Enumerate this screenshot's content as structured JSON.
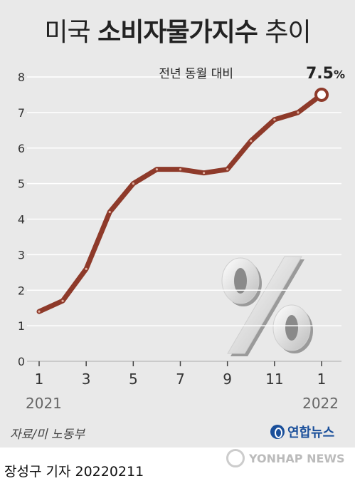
{
  "title": {
    "part1": "미국",
    "part2": "소비자물가지수",
    "part3": "추이"
  },
  "annotation": {
    "label": "전년 동월 대비",
    "value": "7.5",
    "unit": "%"
  },
  "source": "자료/미 노동부",
  "logo": "연합뉴스",
  "watermark": "YONHAP NEWS",
  "credit": "장성구 기자  20220211",
  "colors": {
    "line": "#8e3a2a",
    "background": "#e9e9e9",
    "grid": "#ffffff"
  },
  "chart_data": {
    "type": "line",
    "title": "미국 소비자물가지수 추이",
    "xlabel": "",
    "ylabel": "",
    "ylim": [
      0,
      8
    ],
    "yticks": [
      0,
      1,
      2,
      3,
      4,
      5,
      6,
      7,
      8
    ],
    "x_tick_labels": [
      "1",
      "3",
      "5",
      "7",
      "9",
      "11",
      "1"
    ],
    "x_tick_index": [
      0,
      2,
      4,
      6,
      8,
      10,
      12
    ],
    "year_labels": [
      {
        "label": "2021",
        "index": 0
      },
      {
        "label": "2022",
        "index": 12
      }
    ],
    "x": [
      "2021-01",
      "2021-02",
      "2021-03",
      "2021-04",
      "2021-05",
      "2021-06",
      "2021-07",
      "2021-08",
      "2021-09",
      "2021-10",
      "2021-11",
      "2021-12",
      "2022-01"
    ],
    "series": [
      {
        "values": [
          1.4,
          1.7,
          2.6,
          4.2,
          5.0,
          5.4,
          5.4,
          5.3,
          5.4,
          6.2,
          6.8,
          7.0,
          7.5
        ]
      }
    ],
    "grid": true
  }
}
